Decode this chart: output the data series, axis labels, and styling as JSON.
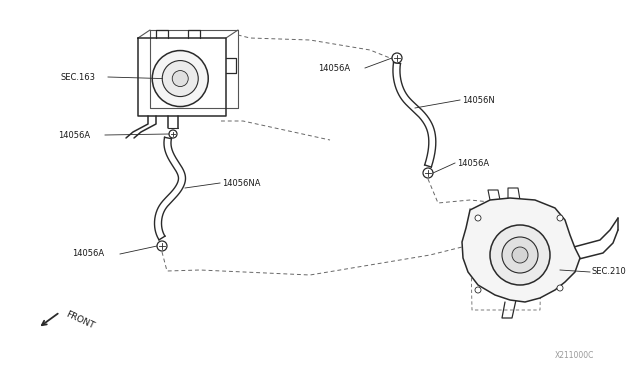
{
  "bg_color": "#ffffff",
  "line_color": "#2a2a2a",
  "label_color": "#1a1a1a",
  "dashed_color": "#666666",
  "fig_width": 6.4,
  "fig_height": 3.72,
  "watermark": "X211000C",
  "labels": {
    "SEC163": "SEC.163",
    "SEC210": "SEC.210",
    "lbl_14056A_1": "14056A",
    "lbl_14056A_2": "14056A",
    "lbl_14056A_3": "14056A",
    "lbl_14056A_4": "14056A",
    "lbl_14056N": "14056N",
    "lbl_14056NA": "14056NA",
    "front": "FRONT"
  },
  "font_size": 6.0
}
